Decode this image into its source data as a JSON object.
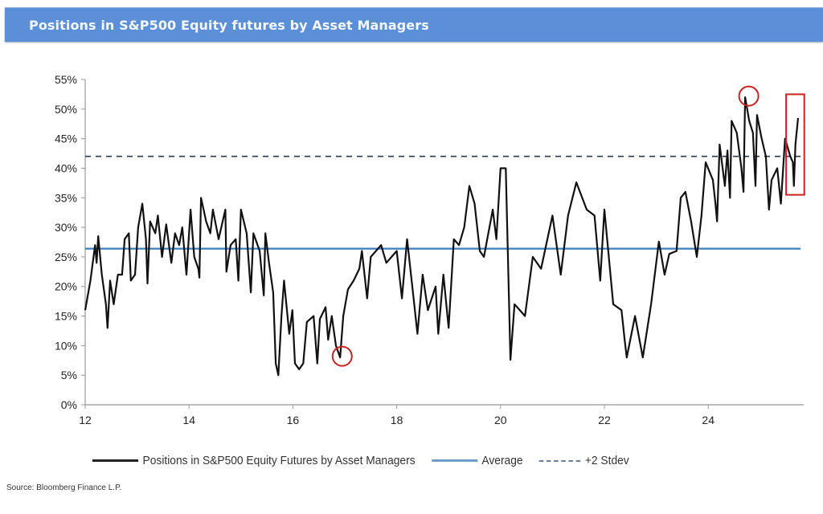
{
  "chart_data": {
    "type": "line",
    "title": "Positions in S&P500 Equity futures by Asset Managers",
    "xlabel": "",
    "ylabel": "",
    "xlim": [
      12,
      25.84
    ],
    "ylim": [
      0,
      55
    ],
    "x_ticks": [
      12,
      14,
      16,
      18,
      20,
      22,
      24
    ],
    "x_tick_labels": [
      "12",
      "14",
      "16",
      "18",
      "20",
      "22",
      "24"
    ],
    "y_ticks": [
      0,
      5,
      10,
      15,
      20,
      25,
      30,
      35,
      40,
      45,
      50,
      55
    ],
    "y_tick_labels": [
      "0%",
      "5%",
      "10%",
      "15%",
      "20%",
      "25%",
      "30%",
      "35%",
      "40%",
      "45%",
      "50%",
      "55%"
    ],
    "grid": false,
    "legend_position": "bottom",
    "colors": {
      "series": "#111111",
      "average": "#3a7fc1",
      "stdev": "#2b3a4a",
      "annotation": "#cc2222",
      "title_bar": "#5b8fd8"
    },
    "series": [
      {
        "name": "Positions in S&P500 Equity Futures by Asset Managers",
        "x": [
          12.0,
          12.1,
          12.19,
          12.22,
          12.25,
          12.32,
          12.4,
          12.43,
          12.48,
          12.55,
          12.63,
          12.71,
          12.76,
          12.84,
          12.88,
          12.96,
          13.02,
          13.1,
          13.17,
          13.2,
          13.25,
          13.35,
          13.4,
          13.48,
          13.56,
          13.66,
          13.73,
          13.81,
          13.87,
          13.95,
          14.03,
          14.1,
          14.18,
          14.2,
          14.23,
          14.33,
          14.41,
          14.46,
          14.57,
          14.7,
          14.72,
          14.8,
          14.9,
          14.95,
          15.0,
          15.11,
          15.19,
          15.24,
          15.36,
          15.44,
          15.47,
          15.54,
          15.62,
          15.67,
          15.72,
          15.78,
          15.83,
          15.93,
          15.99,
          16.04,
          16.12,
          16.2,
          16.27,
          16.4,
          16.47,
          16.52,
          16.63,
          16.68,
          16.75,
          16.83,
          16.91,
          16.97,
          17.06,
          17.17,
          17.28,
          17.33,
          17.43,
          17.5,
          17.7,
          17.8,
          18.0,
          18.1,
          18.2,
          18.3,
          18.4,
          18.5,
          18.6,
          18.75,
          18.8,
          18.9,
          19.0,
          19.1,
          19.2,
          19.3,
          19.4,
          19.5,
          19.6,
          19.68,
          19.85,
          19.92,
          20.0,
          20.1,
          20.19,
          20.27,
          20.47,
          20.62,
          20.78,
          21.0,
          21.16,
          21.3,
          21.46,
          21.66,
          21.81,
          21.92,
          22.0,
          22.17,
          22.33,
          22.39,
          22.43,
          22.59,
          22.74,
          22.9,
          23.05,
          23.16,
          23.25,
          23.39,
          23.47,
          23.56,
          23.67,
          23.78,
          23.87,
          23.95,
          24.09,
          24.14,
          24.17,
          24.22,
          24.32,
          24.37,
          24.42,
          24.45,
          24.55,
          24.64,
          24.68,
          24.71,
          24.79,
          24.86,
          24.91,
          24.94,
          25.03,
          25.11,
          25.17,
          25.22,
          25.33,
          25.4,
          25.48,
          25.58,
          25.63,
          25.65,
          25.68,
          25.73
        ],
        "y": [
          16,
          21,
          27,
          24,
          28.5,
          22,
          17,
          13,
          21,
          17,
          22,
          22,
          28,
          29,
          21,
          22,
          30,
          34,
          28,
          20.5,
          31,
          29,
          32,
          25,
          30.5,
          24,
          29,
          27,
          30,
          22,
          33,
          25,
          23,
          21.5,
          35,
          31,
          29,
          33,
          28,
          33,
          22.5,
          27,
          28,
          21,
          33,
          29,
          19,
          29,
          26,
          18.5,
          29,
          24,
          19,
          7,
          5,
          15,
          21,
          12,
          16,
          7,
          6,
          7,
          14,
          15,
          7,
          14.5,
          16.5,
          11,
          15,
          10,
          8,
          15,
          19.5,
          21,
          23,
          26,
          18,
          25,
          27,
          24,
          26,
          18,
          28,
          20,
          12,
          22,
          16,
          20,
          12,
          22,
          13,
          28,
          27,
          30,
          37,
          34,
          26,
          25,
          33,
          28,
          40,
          40,
          7.6,
          17,
          15,
          25,
          23,
          32,
          22,
          32,
          37.6,
          33,
          32,
          21,
          33,
          17,
          16,
          11,
          8,
          15,
          8,
          17,
          27.6,
          22,
          25.5,
          26,
          35,
          36,
          31,
          25,
          32,
          41,
          38,
          34,
          31,
          44,
          37,
          43,
          35,
          48,
          46,
          40,
          36,
          52,
          48,
          46,
          37,
          49,
          45,
          42,
          33,
          38,
          40,
          34,
          45,
          42,
          41,
          37,
          44,
          48.5
        ]
      },
      {
        "name": "Average",
        "value": 26.4
      },
      {
        "name": "+2 Stdev",
        "value": 42
      }
    ],
    "annotations": [
      {
        "type": "circle",
        "x": 16.95,
        "y": 8.2
      },
      {
        "type": "circle",
        "x": 24.78,
        "y": 52.2
      },
      {
        "type": "rectangle",
        "x": [
          25.5,
          25.85
        ],
        "y": [
          35.5,
          52.5
        ]
      }
    ]
  },
  "legend": {
    "series_label": "Positions in S&P500 Equity Futures by Asset Managers",
    "average_label": "Average",
    "stdev_label": "+2 Stdev"
  },
  "source": "Source: Bloomberg Finance L.P."
}
